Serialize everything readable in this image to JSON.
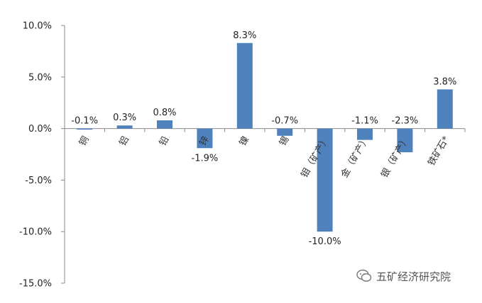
{
  "chart_data": {
    "type": "bar",
    "categories": [
      "铜",
      "铝",
      "铅",
      "锌",
      "镍",
      "锡",
      "钼（矿产）",
      "金（矿产）",
      "银（矿产）",
      "铁矿石*"
    ],
    "values": [
      -0.1,
      0.3,
      0.8,
      -1.9,
      8.3,
      -0.7,
      -10.0,
      -1.1,
      -2.3,
      3.8
    ],
    "data_labels": [
      "-0.1%",
      "0.3%",
      "0.8%",
      "-1.9%",
      "8.3%",
      "-0.7%",
      "-10.0%",
      "-1.1%",
      "-2.3%",
      "3.8%"
    ],
    "y_ticks": [
      10,
      5,
      0,
      -5,
      -10,
      -15
    ],
    "y_tick_labels": [
      "10.0%",
      "5.0%",
      "0.0%",
      "-5.0%",
      "-10.0%",
      "-15.0%"
    ],
    "ylim": [
      -15,
      10
    ],
    "grid": false,
    "bar_color": "#4F81BD"
  },
  "watermark": {
    "text": "五矿经济研究院",
    "icon": "wechat-icon"
  }
}
